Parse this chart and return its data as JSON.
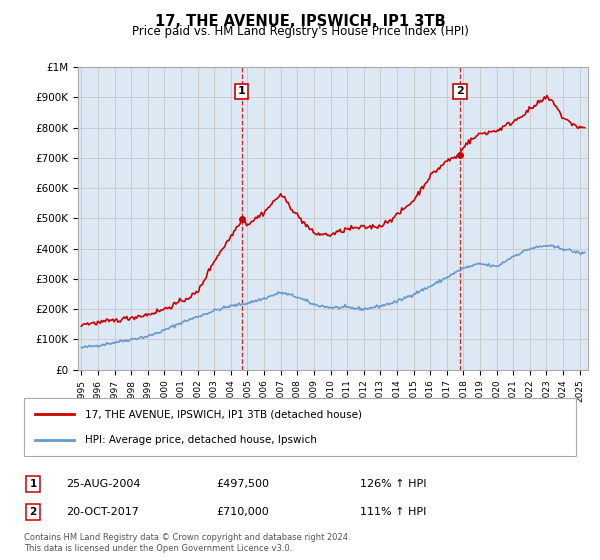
{
  "title": "17, THE AVENUE, IPSWICH, IP1 3TB",
  "subtitle": "Price paid vs. HM Land Registry's House Price Index (HPI)",
  "ylabel_ticks": [
    "£0",
    "£100K",
    "£200K",
    "£300K",
    "£400K",
    "£500K",
    "£600K",
    "£700K",
    "£800K",
    "£900K",
    "£1M"
  ],
  "ytick_values": [
    0,
    100000,
    200000,
    300000,
    400000,
    500000,
    600000,
    700000,
    800000,
    900000,
    1000000
  ],
  "ylim": [
    0,
    1000000
  ],
  "xlim_start": 1994.8,
  "xlim_end": 2025.5,
  "sale1_x": 2004.65,
  "sale1_y": 497500,
  "sale1_label": "1",
  "sale1_date": "25-AUG-2004",
  "sale1_price": "£497,500",
  "sale1_hpi": "126% ↑ HPI",
  "sale2_x": 2017.79,
  "sale2_y": 710000,
  "sale2_label": "2",
  "sale2_date": "20-OCT-2017",
  "sale2_price": "£710,000",
  "sale2_hpi": "111% ↑ HPI",
  "line1_color": "#cc0000",
  "line2_color": "#6699cc",
  "annotation_color": "#cc0000",
  "grid_color": "#cccccc",
  "plot_bg_color": "#dce9f5",
  "background_color": "#ffffff",
  "legend_label1": "17, THE AVENUE, IPSWICH, IP1 3TB (detached house)",
  "legend_label2": "HPI: Average price, detached house, Ipswich",
  "footnote": "Contains HM Land Registry data © Crown copyright and database right 2024.\nThis data is licensed under the Open Government Licence v3.0.",
  "xtick_years": [
    1995,
    1996,
    1997,
    1998,
    1999,
    2000,
    2001,
    2002,
    2003,
    2004,
    2005,
    2006,
    2007,
    2008,
    2009,
    2010,
    2011,
    2012,
    2013,
    2014,
    2015,
    2016,
    2017,
    2018,
    2019,
    2020,
    2021,
    2022,
    2023,
    2024,
    2025
  ]
}
